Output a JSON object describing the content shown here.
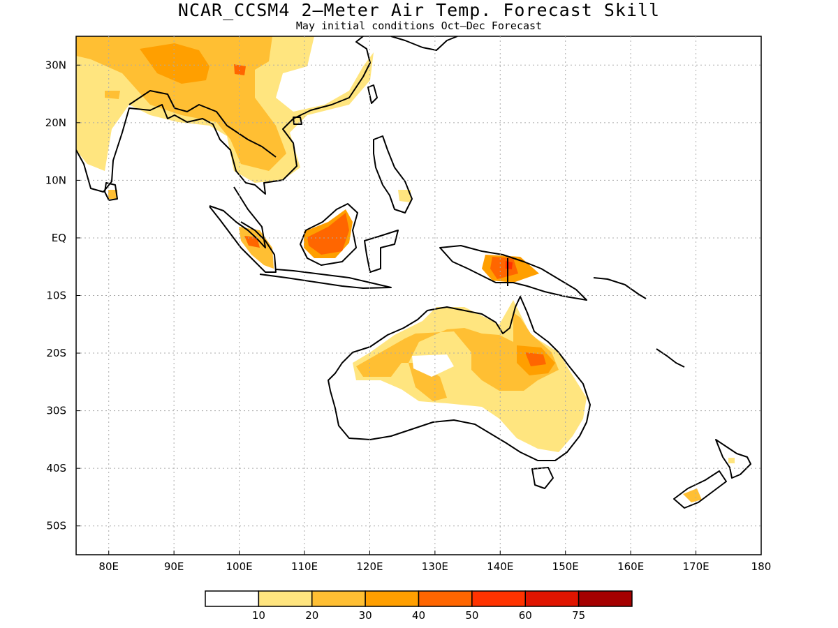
{
  "map": {
    "title": "NCAR_CCSM4 2–Meter Air Temp. Forecast Skill",
    "subtitle": "May initial conditions  Oct–Dec Forecast",
    "lon_range": [
      75,
      180
    ],
    "lat_range": [
      -55,
      35
    ],
    "lon_ticks": [
      "80E",
      "90E",
      "100E",
      "110E",
      "120E",
      "130E",
      "140E",
      "150E",
      "160E",
      "170E",
      "180"
    ],
    "lat_ticks": [
      "30N",
      "20N",
      "10N",
      "EQ",
      "10S",
      "20S",
      "30S",
      "40S",
      "50S"
    ],
    "grid": "dotted"
  },
  "legend": {
    "labels": [
      "10",
      "20",
      "30",
      "40",
      "50",
      "60",
      "75"
    ],
    "colors": [
      "#ffffff",
      "#ffe57f",
      "#ffbf33",
      "#ff9f00",
      "#ff6600",
      "#ff3300",
      "#e01500",
      "#a50000"
    ]
  }
}
